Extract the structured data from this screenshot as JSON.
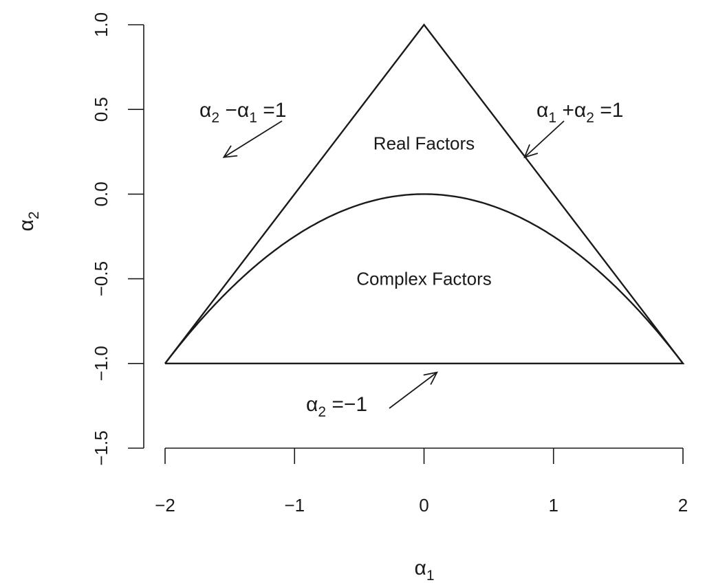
{
  "chart_data": {
    "type": "line",
    "title": "",
    "xlabel": {
      "symbol": "α",
      "sub": "1"
    },
    "ylabel": {
      "symbol": "α",
      "sub": "2"
    },
    "xlim": [
      -2,
      2
    ],
    "ylim": [
      -1.5,
      1
    ],
    "x_ticks": [
      -2,
      -1,
      0,
      1,
      2
    ],
    "x_tick_labels": [
      "−2",
      "−1",
      "0",
      "1",
      "2"
    ],
    "y_ticks": [
      -1.5,
      -1,
      -0.5,
      0,
      0.5,
      1
    ],
    "y_tick_labels": [
      "−1.5",
      "−1.0",
      "−0.5",
      "0.0",
      "0.5",
      "1.0"
    ],
    "grid": false,
    "series": [
      {
        "points": [
          [
            -2,
            -1
          ],
          [
            0,
            1
          ],
          [
            2,
            -1
          ],
          [
            -2,
            -1
          ]
        ]
      },
      {
        "function": "alpha2 = -alpha1^2/4",
        "x_range": [
          -2,
          2
        ]
      }
    ],
    "annotations": [
      {
        "lhs": {
          "symbol": "α",
          "sub": "2"
        },
        "op": "−",
        "rhs": {
          "symbol": "α",
          "sub": "1"
        },
        "eq": "=1",
        "point_to": [
          -0.75,
          0.25
        ]
      },
      {
        "lhs": {
          "symbol": "α",
          "sub": "1"
        },
        "op": "+",
        "rhs": {
          "symbol": "α",
          "sub": "2"
        },
        "eq": "=1",
        "point_to": [
          0.75,
          0.25
        ]
      },
      {
        "lhs": {
          "symbol": "α",
          "sub": "2"
        },
        "eq": "=−1",
        "point_to": [
          0.1,
          -1.02
        ]
      }
    ],
    "region_labels": [
      {
        "text": "Real Factors",
        "x": 0,
        "y": 0.3
      },
      {
        "text": "Complex Factors",
        "x": 0,
        "y": -0.5
      }
    ]
  }
}
